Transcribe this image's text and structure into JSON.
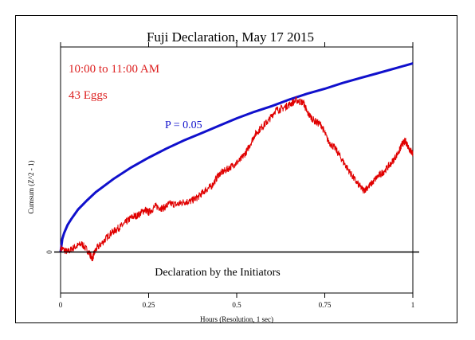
{
  "chart_data": {
    "type": "line",
    "title": "Fuji Declaration, May 17 2015",
    "xlabel": "Hours (Resolution, 1 sec)",
    "ylabel": "Cumsum (Z^2 - 1)",
    "xlim": [
      0,
      1
    ],
    "x_ticks": [
      {
        "value": 0,
        "label": "0"
      },
      {
        "value": 0.25,
        "label": "0.25"
      },
      {
        "value": 0.5,
        "label": "0.5"
      },
      {
        "value": 0.75,
        "label": "0.75"
      },
      {
        "value": 1,
        "label": "1"
      }
    ],
    "y_ticks": [
      {
        "value": 0,
        "label": "0"
      }
    ],
    "ylim": [
      -50,
      250
    ],
    "annotations": {
      "time_range": "10:00 to 11:00 AM",
      "eggs": "43 Eggs",
      "p_label": "P = 0.05",
      "baseline_label": "Declaration by the Initiators"
    },
    "series": [
      {
        "role": "cumulative-deviation",
        "color": "#e00000",
        "x": [
          0,
          0.02,
          0.04,
          0.06,
          0.08,
          0.09,
          0.1,
          0.12,
          0.14,
          0.16,
          0.18,
          0.2,
          0.22,
          0.24,
          0.25,
          0.27,
          0.29,
          0.31,
          0.33,
          0.35,
          0.37,
          0.39,
          0.41,
          0.43,
          0.45,
          0.47,
          0.49,
          0.51,
          0.53,
          0.55,
          0.57,
          0.59,
          0.61,
          0.63,
          0.65,
          0.67,
          0.69,
          0.7,
          0.72,
          0.74,
          0.76,
          0.78,
          0.8,
          0.82,
          0.84,
          0.86,
          0.88,
          0.9,
          0.92,
          0.94,
          0.96,
          0.97,
          0.98,
          0.99,
          1.0
        ],
        "y": [
          5,
          0,
          6,
          10,
          0,
          -8,
          3,
          12,
          22,
          28,
          34,
          42,
          45,
          52,
          48,
          56,
          53,
          59,
          58,
          61,
          62,
          67,
          75,
          81,
          95,
          100,
          106,
          112,
          124,
          142,
          152,
          160,
          173,
          175,
          180,
          185,
          182,
          170,
          160,
          155,
          135,
          126,
          112,
          98,
          85,
          75,
          82,
          92,
          99,
          109,
          122,
          132,
          135,
          126,
          120
        ]
      }
    ],
    "reference_curve": {
      "label": "P = 0.05",
      "color": "#1010cc",
      "x": [
        0,
        0.005,
        0.01,
        0.02,
        0.03,
        0.05,
        0.075,
        0.1,
        0.15,
        0.2,
        0.25,
        0.3,
        0.35,
        0.4,
        0.45,
        0.5,
        0.55,
        0.6,
        0.65,
        0.7,
        0.75,
        0.8,
        0.85,
        0.9,
        0.95,
        1.0
      ],
      "y": [
        0,
        16,
        23,
        33,
        40,
        52,
        63,
        73,
        89,
        103,
        115,
        126,
        136,
        145,
        154,
        163,
        171,
        178,
        186,
        193,
        199,
        206,
        212,
        218,
        224,
        230
      ]
    }
  }
}
